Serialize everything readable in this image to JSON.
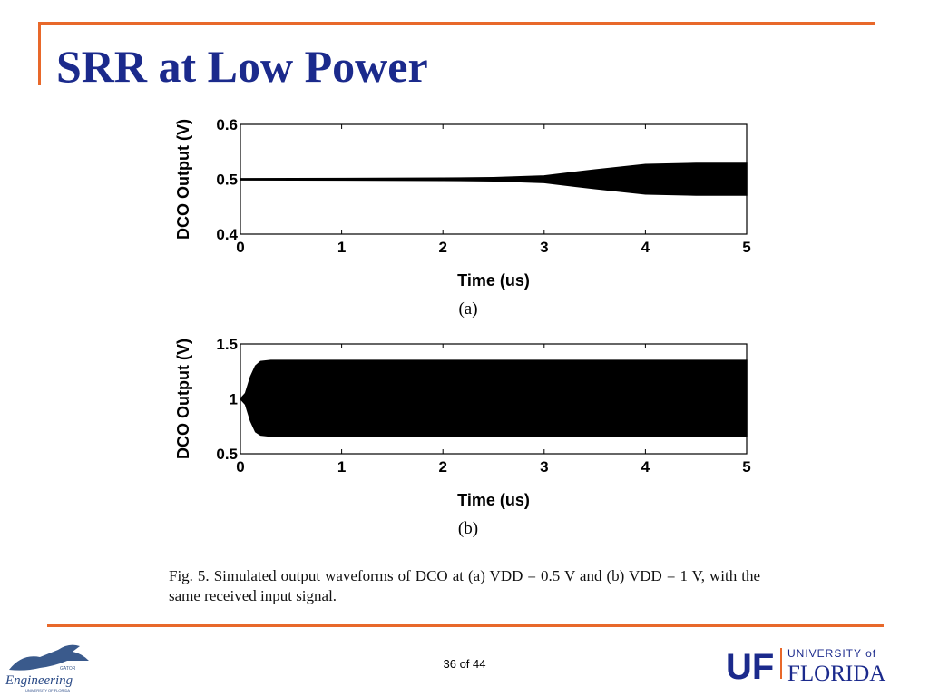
{
  "slide": {
    "title": "SRR at Low Power",
    "caption": "Fig. 5.  Simulated output waveforms of DCO at (a) VDD = 0.5 V and (b) VDD = 1 V, with the same received input signal.",
    "page": "36 of 44"
  },
  "logos": {
    "left_text": "Engineering",
    "left_small": "GATOR",
    "left_sub": "UNIVERSITY OF FLORIDA",
    "right_mark": "UF",
    "right_top": "UNIVERSITY of",
    "right_bottom": "FLORIDA",
    "brand_blue": "#1b2a8c",
    "accent_orange": "#e8682a"
  },
  "chart_data": [
    {
      "type": "area",
      "panel_label": "(a)",
      "xlabel": "Time (us)",
      "ylabel": "DCO Output (V)",
      "xlim": [
        0,
        5
      ],
      "ylim": [
        0.4,
        0.6
      ],
      "xticks": [
        "0",
        "1",
        "2",
        "3",
        "4",
        "5"
      ],
      "yticks": [
        "0.4",
        "0.5",
        "0.6"
      ],
      "series": [
        {
          "x": [
            0,
            2.0,
            2.5,
            3.0,
            3.5,
            4.0,
            4.5,
            5.0
          ],
          "upper": [
            0.501,
            0.502,
            0.503,
            0.506,
            0.517,
            0.527,
            0.529,
            0.529
          ],
          "lower": [
            0.499,
            0.498,
            0.497,
            0.494,
            0.483,
            0.473,
            0.471,
            0.471
          ]
        }
      ]
    },
    {
      "type": "area",
      "panel_label": "(b)",
      "xlabel": "Time (us)",
      "ylabel": "DCO Output (V)",
      "xlim": [
        0,
        5
      ],
      "ylim": [
        0.5,
        1.5
      ],
      "xticks": [
        "0",
        "1",
        "2",
        "3",
        "4",
        "5"
      ],
      "yticks": [
        "0.5",
        "1",
        "1.5"
      ],
      "series": [
        {
          "x": [
            0,
            0.05,
            0.1,
            0.15,
            0.2,
            0.3,
            5.0
          ],
          "upper": [
            1.0,
            1.05,
            1.2,
            1.3,
            1.34,
            1.35,
            1.35
          ],
          "lower": [
            1.0,
            0.95,
            0.8,
            0.7,
            0.67,
            0.66,
            0.66
          ]
        }
      ]
    }
  ]
}
